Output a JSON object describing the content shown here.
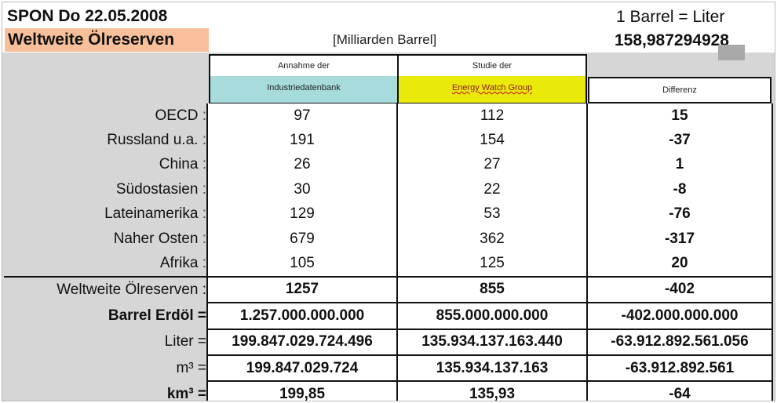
{
  "header": {
    "date_line": "SPON Do 22.05.2008",
    "title": "Weltweite Ölreserven",
    "unit": "[Milliarden Barrel]",
    "conversion_label": "1 Barrel = Liter",
    "conversion_value": "158,987294928"
  },
  "columns": {
    "c1_line1": "Annahme der",
    "c1_line2": "Industriedatenbank",
    "c2_line1": "Studie der",
    "c2_line2": "Energy Watch Group",
    "c3": "Differenz"
  },
  "regions": [
    {
      "label": "OECD",
      "a": "97",
      "b": "112",
      "diff": "15"
    },
    {
      "label": "Russland u.a.",
      "a": "191",
      "b": "154",
      "diff": "-37"
    },
    {
      "label": "China",
      "a": "26",
      "b": "27",
      "diff": "1"
    },
    {
      "label": "Südostasien",
      "a": "30",
      "b": "22",
      "diff": "-8"
    },
    {
      "label": "Lateinamerika",
      "a": "129",
      "b": "53",
      "diff": "-76"
    },
    {
      "label": "Naher Osten",
      "a": "679",
      "b": "362",
      "diff": "-317"
    },
    {
      "label": "Afrika",
      "a": "105",
      "b": "125",
      "diff": "20"
    }
  ],
  "colon": ":",
  "totals": [
    {
      "label": "Weltweite Ölreserven :",
      "a": "1257",
      "b": "855",
      "diff": "-402"
    },
    {
      "label": "Barrel Erdöl =",
      "a": "1.257.000.000.000",
      "b": "855.000.000.000",
      "diff": "-402.000.000.000"
    },
    {
      "label": "Liter =",
      "a": "199.847.029.724.496",
      "b": "135.934.137.163.440",
      "diff": "-63.912.892.561.056"
    },
    {
      "label": "m³ =",
      "a": "199.847.029.724",
      "b": "135.934.137.163",
      "diff": "-63.912.892.561"
    },
    {
      "label": "km³ =",
      "a": "199,85",
      "b": "135,93",
      "diff": "-64"
    }
  ],
  "colors": {
    "negative": "#c00000",
    "cyan_header": "#a8dcdc",
    "yellow_header": "#eaea0a",
    "title_bg": "#f8c09a"
  }
}
